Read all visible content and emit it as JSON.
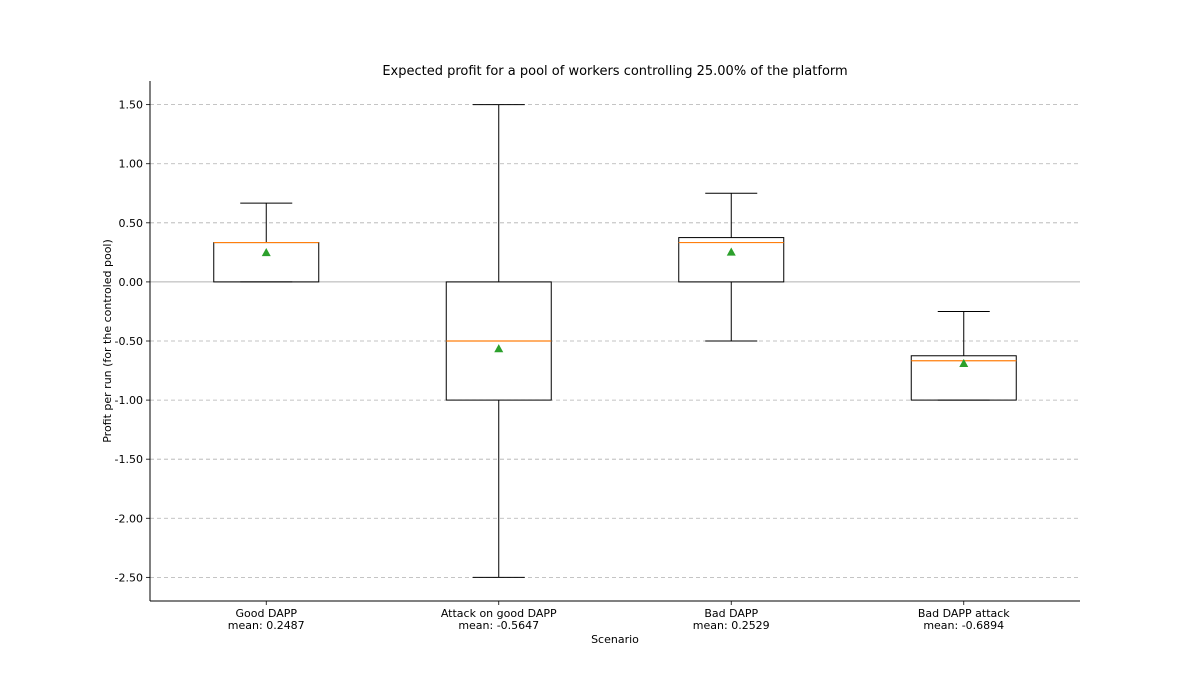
{
  "chart_data": {
    "type": "box",
    "title": "Expected profit for a pool of workers controlling 25.00% of the platform",
    "xlabel": "Scenario",
    "ylabel": "Profit per run (for the controled pool)",
    "ylim": [
      -2.7,
      1.7
    ],
    "yticks": [
      1.5,
      1.0,
      0.5,
      0.0,
      -0.5,
      -1.0,
      -1.5,
      -2.0,
      -2.5
    ],
    "ytick_labels": [
      "1.50",
      "1.00",
      "0.50",
      "0.00",
      "-0.50",
      "-1.00",
      "-1.50",
      "-2.00",
      "-2.50"
    ],
    "grid": "horizontal dashed",
    "colors": {
      "median": "#ff7f0e",
      "mean_marker": "#2ca02c",
      "box": "#000000",
      "grid": "#b0b0b0"
    },
    "boxes": [
      {
        "name": "Good DAPP",
        "mean_label": "mean: 0.2487",
        "whisker_low": 0.0,
        "q1": 0.0,
        "median": 0.333,
        "q3": 0.333,
        "whisker_high": 0.667,
        "mean": 0.2487
      },
      {
        "name": "Attack on good DAPP",
        "mean_label": "mean: -0.5647",
        "whisker_low": -2.5,
        "q1": -1.0,
        "median": -0.5,
        "q3": 0.0,
        "whisker_high": 1.5,
        "mean": -0.5647
      },
      {
        "name": "Bad DAPP",
        "mean_label": "mean: 0.2529",
        "whisker_low": -0.5,
        "q1": 0.0,
        "median": 0.333,
        "q3": 0.375,
        "whisker_high": 0.75,
        "mean": 0.2529
      },
      {
        "name": "Bad DAPP attack",
        "mean_label": "mean: -0.6894",
        "whisker_low": -1.0,
        "q1": -1.0,
        "median": -0.667,
        "q3": -0.625,
        "whisker_high": -0.25,
        "mean": -0.6894
      }
    ]
  }
}
